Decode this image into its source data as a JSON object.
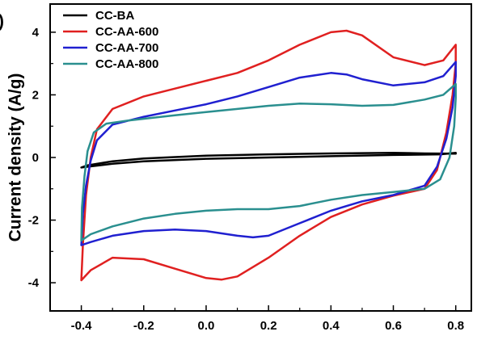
{
  "panel_label": ")",
  "chart_data": {
    "type": "line",
    "title": "",
    "xlabel": "",
    "ylabel": "Current density (A/g)",
    "xlim": [
      -0.5,
      0.85
    ],
    "ylim": [
      -4.9,
      4.9
    ],
    "x_ticks": [
      -0.4,
      -0.2,
      0.0,
      0.2,
      0.4,
      0.6,
      0.8
    ],
    "x_tick_labels": [
      "-0.4",
      "-0.2",
      "0.0",
      "0.2",
      "0.4",
      "0.6",
      "0.8"
    ],
    "y_ticks": [
      -4,
      -2,
      0,
      2,
      4
    ],
    "y_tick_labels": [
      "-4",
      "-2",
      "0",
      "2",
      "4"
    ],
    "grid": false,
    "legend_position": "top-left",
    "series": [
      {
        "name": "CC-BA",
        "color": "#000000",
        "points": [
          [
            -0.4,
            -0.32
          ],
          [
            -0.3,
            -0.2
          ],
          [
            -0.2,
            -0.12
          ],
          [
            0.0,
            -0.04
          ],
          [
            0.2,
            0.0
          ],
          [
            0.4,
            0.04
          ],
          [
            0.6,
            0.08
          ],
          [
            0.75,
            0.1
          ],
          [
            0.8,
            0.15
          ],
          [
            0.8,
            0.12
          ],
          [
            0.7,
            0.13
          ],
          [
            0.6,
            0.15
          ],
          [
            0.4,
            0.13
          ],
          [
            0.2,
            0.1
          ],
          [
            0.0,
            0.06
          ],
          [
            -0.2,
            -0.03
          ],
          [
            -0.3,
            -0.12
          ],
          [
            -0.38,
            -0.25
          ],
          [
            -0.4,
            -0.32
          ]
        ]
      },
      {
        "name": "CC-AA-600",
        "color": "#e02020",
        "points": [
          [
            -0.4,
            -3.92
          ],
          [
            -0.395,
            -2.8
          ],
          [
            -0.385,
            -1.2
          ],
          [
            -0.37,
            0.0
          ],
          [
            -0.35,
            0.9
          ],
          [
            -0.3,
            1.55
          ],
          [
            -0.2,
            1.95
          ],
          [
            -0.1,
            2.2
          ],
          [
            0.0,
            2.45
          ],
          [
            0.1,
            2.7
          ],
          [
            0.2,
            3.1
          ],
          [
            0.3,
            3.6
          ],
          [
            0.4,
            4.0
          ],
          [
            0.45,
            4.05
          ],
          [
            0.5,
            3.9
          ],
          [
            0.6,
            3.2
          ],
          [
            0.7,
            2.95
          ],
          [
            0.76,
            3.1
          ],
          [
            0.8,
            3.6
          ],
          [
            0.8,
            3.0
          ],
          [
            0.79,
            2.0
          ],
          [
            0.77,
            0.8
          ],
          [
            0.74,
            -0.4
          ],
          [
            0.7,
            -1.0
          ],
          [
            0.6,
            -1.22
          ],
          [
            0.5,
            -1.5
          ],
          [
            0.4,
            -1.9
          ],
          [
            0.3,
            -2.5
          ],
          [
            0.2,
            -3.2
          ],
          [
            0.1,
            -3.8
          ],
          [
            0.05,
            -3.9
          ],
          [
            0.0,
            -3.85
          ],
          [
            -0.1,
            -3.55
          ],
          [
            -0.2,
            -3.25
          ],
          [
            -0.3,
            -3.2
          ],
          [
            -0.37,
            -3.6
          ],
          [
            -0.4,
            -3.92
          ]
        ]
      },
      {
        "name": "CC-AA-700",
        "color": "#2020d0",
        "points": [
          [
            -0.4,
            -2.8
          ],
          [
            -0.395,
            -1.8
          ],
          [
            -0.385,
            -0.9
          ],
          [
            -0.37,
            -0.1
          ],
          [
            -0.35,
            0.55
          ],
          [
            -0.3,
            1.05
          ],
          [
            -0.2,
            1.3
          ],
          [
            -0.1,
            1.5
          ],
          [
            0.0,
            1.7
          ],
          [
            0.1,
            1.95
          ],
          [
            0.2,
            2.25
          ],
          [
            0.3,
            2.55
          ],
          [
            0.4,
            2.7
          ],
          [
            0.45,
            2.65
          ],
          [
            0.5,
            2.5
          ],
          [
            0.6,
            2.3
          ],
          [
            0.7,
            2.4
          ],
          [
            0.76,
            2.6
          ],
          [
            0.8,
            3.05
          ],
          [
            0.8,
            2.6
          ],
          [
            0.79,
            1.6
          ],
          [
            0.77,
            0.6
          ],
          [
            0.74,
            -0.3
          ],
          [
            0.7,
            -0.9
          ],
          [
            0.6,
            -1.2
          ],
          [
            0.5,
            -1.4
          ],
          [
            0.4,
            -1.7
          ],
          [
            0.3,
            -2.1
          ],
          [
            0.2,
            -2.5
          ],
          [
            0.15,
            -2.55
          ],
          [
            0.1,
            -2.5
          ],
          [
            0.0,
            -2.35
          ],
          [
            -0.1,
            -2.3
          ],
          [
            -0.2,
            -2.35
          ],
          [
            -0.3,
            -2.5
          ],
          [
            -0.37,
            -2.7
          ],
          [
            -0.4,
            -2.8
          ]
        ]
      },
      {
        "name": "CC-AA-800",
        "color": "#2a8f8f",
        "points": [
          [
            -0.4,
            -2.65
          ],
          [
            -0.398,
            -1.6
          ],
          [
            -0.39,
            -0.6
          ],
          [
            -0.38,
            0.2
          ],
          [
            -0.36,
            0.8
          ],
          [
            -0.32,
            1.08
          ],
          [
            -0.25,
            1.18
          ],
          [
            -0.1,
            1.35
          ],
          [
            0.0,
            1.45
          ],
          [
            0.1,
            1.55
          ],
          [
            0.2,
            1.65
          ],
          [
            0.3,
            1.72
          ],
          [
            0.4,
            1.7
          ],
          [
            0.5,
            1.65
          ],
          [
            0.6,
            1.68
          ],
          [
            0.7,
            1.85
          ],
          [
            0.76,
            2.0
          ],
          [
            0.8,
            2.35
          ],
          [
            0.8,
            1.9
          ],
          [
            0.795,
            1.0
          ],
          [
            0.78,
            0.0
          ],
          [
            0.75,
            -0.7
          ],
          [
            0.7,
            -1.0
          ],
          [
            0.6,
            -1.1
          ],
          [
            0.5,
            -1.2
          ],
          [
            0.4,
            -1.35
          ],
          [
            0.3,
            -1.55
          ],
          [
            0.2,
            -1.65
          ],
          [
            0.1,
            -1.65
          ],
          [
            0.0,
            -1.7
          ],
          [
            -0.1,
            -1.8
          ],
          [
            -0.2,
            -1.95
          ],
          [
            -0.3,
            -2.2
          ],
          [
            -0.37,
            -2.45
          ],
          [
            -0.4,
            -2.65
          ]
        ]
      }
    ]
  }
}
